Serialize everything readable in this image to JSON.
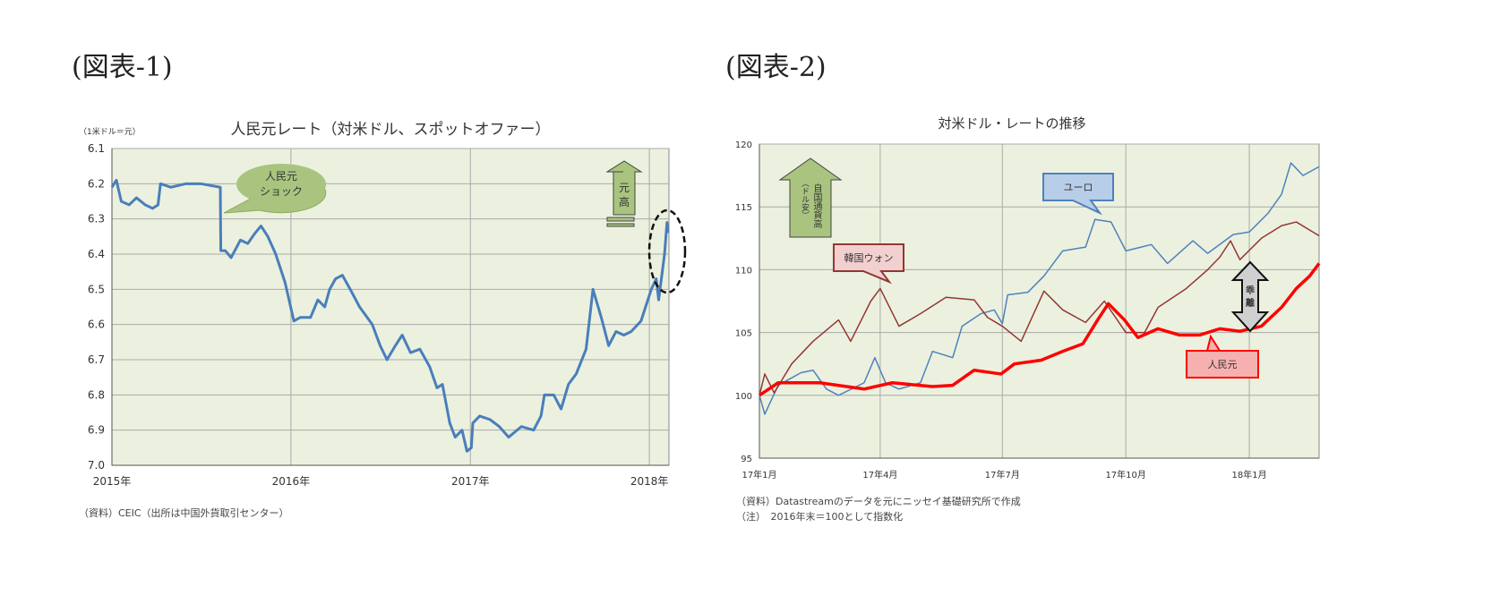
{
  "fig1_label": "(図表-1)",
  "fig2_label": "(図表-2)",
  "chart_data": [
    {
      "type": "line",
      "title": "人民元レート（対米ドル、スポットオファー）",
      "unit_label": "（1米ドル＝元）",
      "yaxis_inverted": true,
      "ylim": [
        6.1,
        7.0
      ],
      "yticks": [
        "6.1",
        "6.2",
        "6.3",
        "6.4",
        "6.5",
        "6.6",
        "6.7",
        "6.8",
        "6.9",
        "7.0"
      ],
      "xticks": [
        {
          "date": "2015-01-01",
          "label": "2015年"
        },
        {
          "date": "2016-01-01",
          "label": "2016年"
        },
        {
          "date": "2017-01-01",
          "label": "2017年"
        },
        {
          "date": "2018-01-01",
          "label": "2018年"
        }
      ],
      "xlim": [
        "2015-01-01",
        "2018-02-10"
      ],
      "grid": true,
      "colors": {
        "line": "#4a7ebb",
        "plot_bg": "#ebf1de",
        "callout": "#a9c47f"
      },
      "annotations": {
        "shock": "人民元ショック",
        "shock_lines": [
          "人民元",
          "ショック"
        ],
        "arrow": "元高"
      },
      "source": "（資料）CEIC（出所は中国外貨取引センター）",
      "series": [
        {
          "points": [
            [
              "2015-01-01",
              6.21
            ],
            [
              "2015-01-10",
              6.19
            ],
            [
              "2015-01-20",
              6.25
            ],
            [
              "2015-02-05",
              6.26
            ],
            [
              "2015-02-20",
              6.24
            ],
            [
              "2015-03-10",
              6.26
            ],
            [
              "2015-03-25",
              6.27
            ],
            [
              "2015-04-05",
              6.26
            ],
            [
              "2015-04-10",
              6.2
            ],
            [
              "2015-05-01",
              6.21
            ],
            [
              "2015-06-01",
              6.2
            ],
            [
              "2015-07-01",
              6.2
            ],
            [
              "2015-08-10",
              6.21
            ],
            [
              "2015-08-11",
              6.39
            ],
            [
              "2015-08-20",
              6.39
            ],
            [
              "2015-09-01",
              6.41
            ],
            [
              "2015-09-20",
              6.36
            ],
            [
              "2015-10-05",
              6.37
            ],
            [
              "2015-10-20",
              6.34
            ],
            [
              "2015-11-01",
              6.32
            ],
            [
              "2015-11-15",
              6.35
            ],
            [
              "2015-12-01",
              6.4
            ],
            [
              "2015-12-20",
              6.48
            ],
            [
              "2016-01-07",
              6.59
            ],
            [
              "2016-01-20",
              6.58
            ],
            [
              "2016-02-10",
              6.58
            ],
            [
              "2016-02-25",
              6.53
            ],
            [
              "2016-03-10",
              6.55
            ],
            [
              "2016-03-20",
              6.5
            ],
            [
              "2016-04-01",
              6.47
            ],
            [
              "2016-04-15",
              6.46
            ],
            [
              "2016-05-01",
              6.5
            ],
            [
              "2016-05-20",
              6.55
            ],
            [
              "2016-06-15",
              6.6
            ],
            [
              "2016-07-01",
              6.66
            ],
            [
              "2016-07-15",
              6.7
            ],
            [
              "2016-08-01",
              6.66
            ],
            [
              "2016-08-15",
              6.63
            ],
            [
              "2016-09-01",
              6.68
            ],
            [
              "2016-09-20",
              6.67
            ],
            [
              "2016-10-10",
              6.72
            ],
            [
              "2016-10-25",
              6.78
            ],
            [
              "2016-11-05",
              6.77
            ],
            [
              "2016-11-20",
              6.88
            ],
            [
              "2016-12-01",
              6.92
            ],
            [
              "2016-12-15",
              6.9
            ],
            [
              "2016-12-25",
              6.96
            ],
            [
              "2017-01-03",
              6.95
            ],
            [
              "2017-01-06",
              6.88
            ],
            [
              "2017-01-20",
              6.86
            ],
            [
              "2017-02-10",
              6.87
            ],
            [
              "2017-03-01",
              6.89
            ],
            [
              "2017-03-20",
              6.92
            ],
            [
              "2017-04-15",
              6.89
            ],
            [
              "2017-05-10",
              6.9
            ],
            [
              "2017-05-25",
              6.86
            ],
            [
              "2017-06-01",
              6.8
            ],
            [
              "2017-06-20",
              6.8
            ],
            [
              "2017-07-05",
              6.84
            ],
            [
              "2017-07-20",
              6.77
            ],
            [
              "2017-08-05",
              6.74
            ],
            [
              "2017-08-25",
              6.67
            ],
            [
              "2017-09-08",
              6.5
            ],
            [
              "2017-09-25",
              6.58
            ],
            [
              "2017-10-10",
              6.66
            ],
            [
              "2017-10-25",
              6.62
            ],
            [
              "2017-11-10",
              6.63
            ],
            [
              "2017-11-25",
              6.62
            ],
            [
              "2017-12-15",
              6.59
            ],
            [
              "2018-01-05",
              6.5
            ],
            [
              "2018-01-15",
              6.47
            ],
            [
              "2018-01-20",
              6.53
            ],
            [
              "2018-02-01",
              6.4
            ],
            [
              "2018-02-06",
              6.31
            ],
            [
              "2018-02-08",
              6.34
            ]
          ]
        }
      ]
    },
    {
      "type": "line",
      "title": "対米ドル・レートの推移",
      "ylim": [
        95,
        120
      ],
      "yticks": [
        "95",
        "100",
        "105",
        "110",
        "115",
        "120"
      ],
      "xticks": [
        {
          "date": "2017-01-01",
          "label": "17年1月"
        },
        {
          "date": "2017-04-01",
          "label": "17年4月"
        },
        {
          "date": "2017-07-01",
          "label": "17年7月"
        },
        {
          "date": "2017-10-01",
          "label": "17年10月"
        },
        {
          "date": "2018-01-01",
          "label": "18年1月"
        }
      ],
      "xlim": [
        "2017-01-01",
        "2018-02-22"
      ],
      "grid": true,
      "colors": {
        "plot_bg": "#ebf1de"
      },
      "annotations": {
        "arrow": "自国通貨高（ドル安）",
        "arrow_col1": "自国通貨高",
        "arrow_col2": "（ドル安）",
        "gap": "乖離"
      },
      "source": "（資料）Datastreamのデータを元にニッセイ基礎研究所で作成",
      "note": "（注）　2016年末＝100として指数化",
      "series": [
        {
          "name": "ユーロ",
          "color": "#4f81bd",
          "points": [
            [
              "2017-01-01",
              100
            ],
            [
              "2017-01-05",
              98.5
            ],
            [
              "2017-01-15",
              100.8
            ],
            [
              "2017-02-01",
              101.8
            ],
            [
              "2017-02-10",
              102
            ],
            [
              "2017-02-20",
              100.5
            ],
            [
              "2017-03-01",
              100
            ],
            [
              "2017-03-20",
              101
            ],
            [
              "2017-03-28",
              103
            ],
            [
              "2017-04-05",
              101
            ],
            [
              "2017-04-15",
              100.5
            ],
            [
              "2017-05-01",
              101
            ],
            [
              "2017-05-10",
              103.5
            ],
            [
              "2017-05-25",
              103
            ],
            [
              "2017-06-01",
              105.5
            ],
            [
              "2017-06-15",
              106.5
            ],
            [
              "2017-06-25",
              106.8
            ],
            [
              "2017-07-01",
              105.7
            ],
            [
              "2017-07-05",
              108
            ],
            [
              "2017-07-20",
              108.2
            ],
            [
              "2017-08-01",
              109.5
            ],
            [
              "2017-08-15",
              111.5
            ],
            [
              "2017-09-01",
              111.8
            ],
            [
              "2017-09-08",
              114
            ],
            [
              "2017-09-20",
              113.8
            ],
            [
              "2017-10-01",
              111.5
            ],
            [
              "2017-10-20",
              112
            ],
            [
              "2017-11-01",
              110.5
            ],
            [
              "2017-11-20",
              112.3
            ],
            [
              "2017-12-01",
              111.3
            ],
            [
              "2017-12-20",
              112.8
            ],
            [
              "2018-01-01",
              113
            ],
            [
              "2018-01-15",
              114.5
            ],
            [
              "2018-01-25",
              116
            ],
            [
              "2018-02-01",
              118.5
            ],
            [
              "2018-02-10",
              117.5
            ],
            [
              "2018-02-22",
              118.2
            ]
          ]
        },
        {
          "name": "韓国ウォン",
          "color": "#943634",
          "points": [
            [
              "2017-01-01",
              100
            ],
            [
              "2017-01-05",
              101.7
            ],
            [
              "2017-01-12",
              100.2
            ],
            [
              "2017-01-25",
              102.5
            ],
            [
              "2017-02-10",
              104.3
            ],
            [
              "2017-03-01",
              106
            ],
            [
              "2017-03-10",
              104.3
            ],
            [
              "2017-03-25",
              107.5
            ],
            [
              "2017-04-01",
              108.5
            ],
            [
              "2017-04-15",
              105.5
            ],
            [
              "2017-05-01",
              106.5
            ],
            [
              "2017-05-20",
              107.8
            ],
            [
              "2017-06-10",
              107.6
            ],
            [
              "2017-06-20",
              106.2
            ],
            [
              "2017-07-01",
              105.5
            ],
            [
              "2017-07-15",
              104.3
            ],
            [
              "2017-08-01",
              108.3
            ],
            [
              "2017-08-15",
              106.8
            ],
            [
              "2017-09-01",
              105.8
            ],
            [
              "2017-09-15",
              107.5
            ],
            [
              "2017-10-01",
              105
            ],
            [
              "2017-10-15",
              105
            ],
            [
              "2017-10-25",
              107
            ],
            [
              "2017-11-15",
              108.5
            ],
            [
              "2017-12-01",
              110
            ],
            [
              "2017-12-10",
              111
            ],
            [
              "2017-12-18",
              112.3
            ],
            [
              "2017-12-25",
              110.8
            ],
            [
              "2018-01-10",
              112.5
            ],
            [
              "2018-01-25",
              113.5
            ],
            [
              "2018-02-05",
              113.8
            ],
            [
              "2018-02-22",
              112.7
            ]
          ]
        },
        {
          "name": "人民元",
          "color": "#ff0000",
          "points": [
            [
              "2017-01-01",
              100
            ],
            [
              "2017-01-15",
              101
            ],
            [
              "2017-02-15",
              101
            ],
            [
              "2017-03-20",
              100.5
            ],
            [
              "2017-04-10",
              101
            ],
            [
              "2017-05-10",
              100.7
            ],
            [
              "2017-05-25",
              100.8
            ],
            [
              "2017-06-10",
              102
            ],
            [
              "2017-06-30",
              101.7
            ],
            [
              "2017-07-10",
              102.5
            ],
            [
              "2017-07-30",
              102.8
            ],
            [
              "2017-08-15",
              103.5
            ],
            [
              "2017-08-30",
              104.1
            ],
            [
              "2017-09-10",
              106
            ],
            [
              "2017-09-18",
              107.3
            ],
            [
              "2017-09-30",
              106
            ],
            [
              "2017-10-10",
              104.6
            ],
            [
              "2017-10-25",
              105.3
            ],
            [
              "2017-11-10",
              104.8
            ],
            [
              "2017-11-25",
              104.8
            ],
            [
              "2017-12-10",
              105.3
            ],
            [
              "2017-12-25",
              105.1
            ],
            [
              "2018-01-10",
              105.5
            ],
            [
              "2018-01-25",
              107
            ],
            [
              "2018-02-05",
              108.5
            ],
            [
              "2018-02-15",
              109.5
            ],
            [
              "2018-02-22",
              110.5
            ]
          ]
        }
      ]
    }
  ]
}
